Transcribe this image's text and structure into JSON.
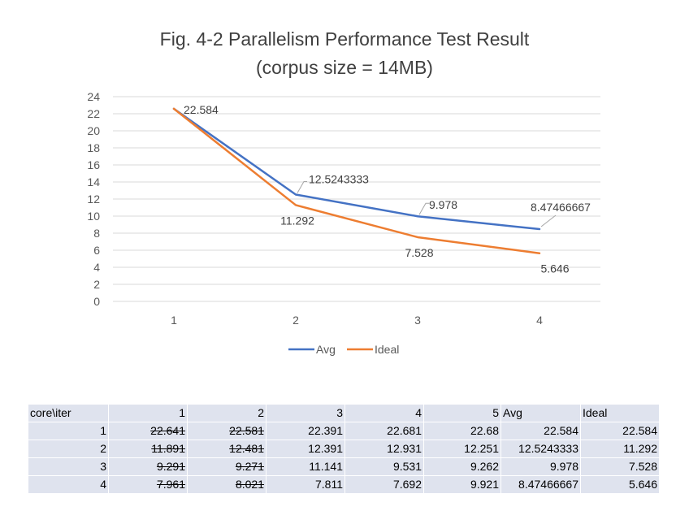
{
  "chart_data": {
    "type": "line",
    "title": "Fig. 4-2 Parallelism Performance Test Result",
    "subtitle": "(corpus size = 14MB)",
    "categories": [
      "1",
      "2",
      "3",
      "4"
    ],
    "series": [
      {
        "name": "Avg",
        "values": [
          22.584,
          12.5243333,
          9.978,
          8.47466667
        ],
        "labels": [
          "22.584",
          "12.5243333",
          "9.978",
          "8.47466667"
        ],
        "color": "#4472c4"
      },
      {
        "name": "Ideal",
        "values": [
          22.584,
          11.292,
          7.528,
          5.646
        ],
        "labels": [
          "",
          "11.292",
          "7.528",
          "5.646"
        ],
        "color": "#ed7d31"
      }
    ],
    "ylim": [
      0,
      24
    ],
    "yticks": [
      "0",
      "2",
      "4",
      "6",
      "8",
      "10",
      "12",
      "14",
      "16",
      "18",
      "20",
      "22",
      "24"
    ],
    "grid": true,
    "legend": "bottom"
  },
  "table": {
    "header": [
      "core\\iter",
      "1",
      "2",
      "3",
      "4",
      "5",
      "Avg",
      "Ideal"
    ],
    "rows": [
      [
        "1",
        "22.641",
        "22.581",
        "22.391",
        "22.681",
        "22.68",
        "22.584",
        "22.584"
      ],
      [
        "2",
        "11.891",
        "12.481",
        "12.391",
        "12.931",
        "12.251",
        "12.5243333",
        "11.292"
      ],
      [
        "3",
        "9.291",
        "9.271",
        "11.141",
        "9.531",
        "9.262",
        "9.978",
        "7.528"
      ],
      [
        "4",
        "7.961",
        "8.021",
        "7.811",
        "7.692",
        "9.921",
        "8.47466667",
        "5.646"
      ]
    ]
  }
}
